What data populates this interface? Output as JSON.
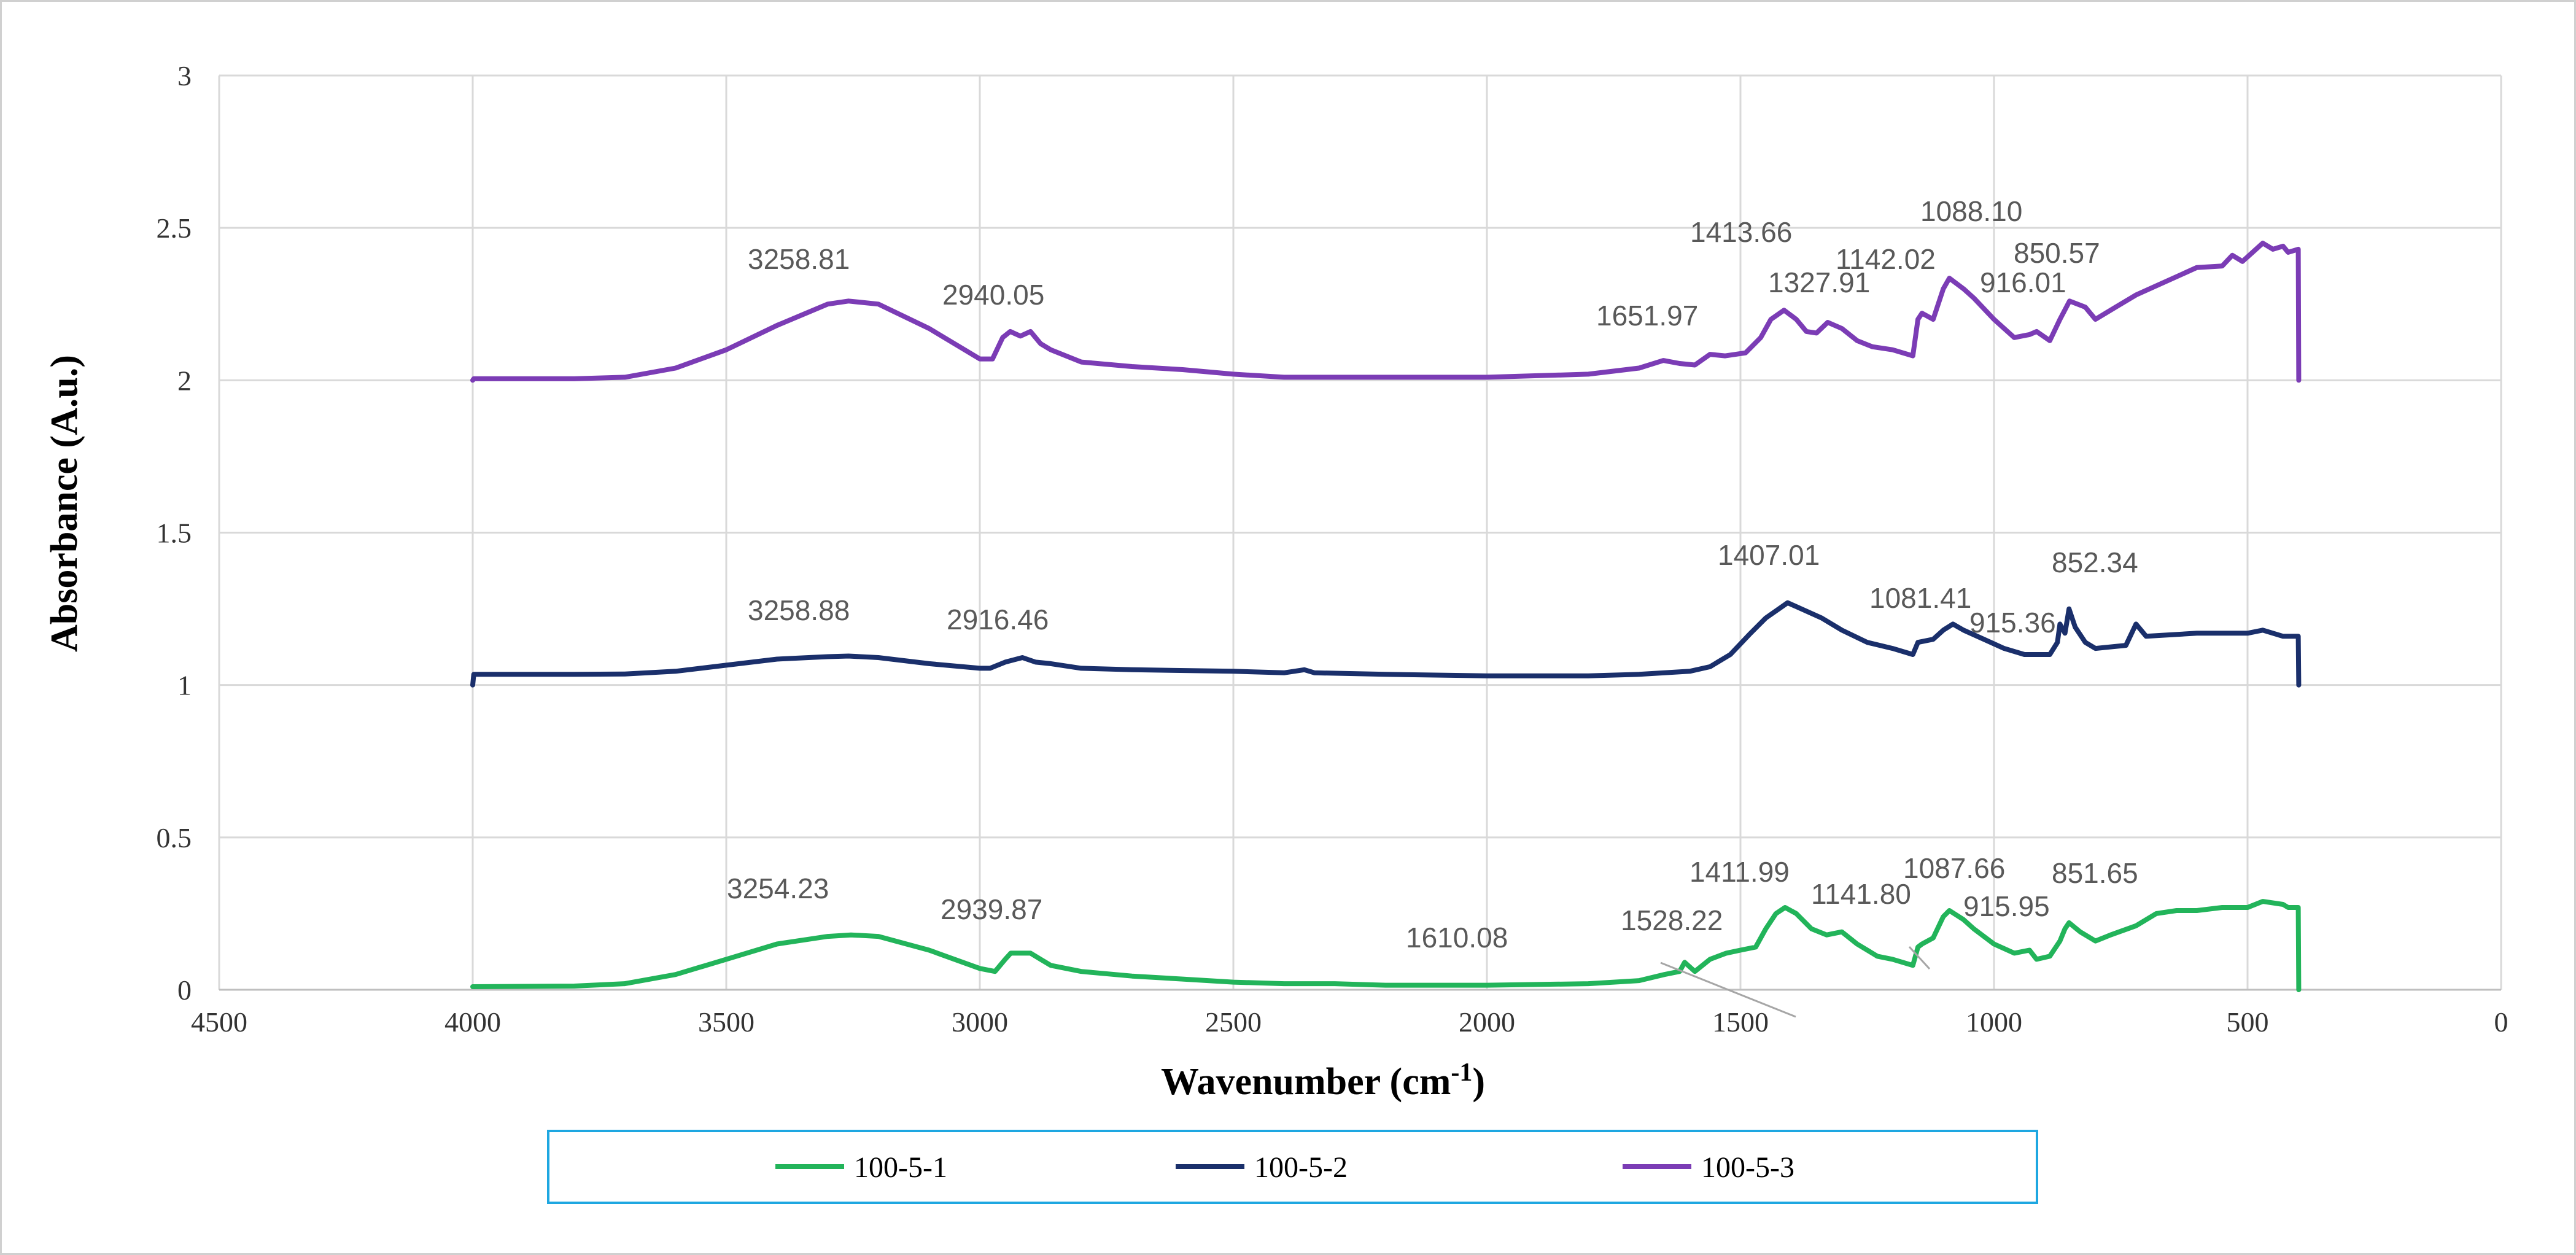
{
  "chart_data": {
    "type": "line",
    "title": "",
    "xlabel": "Wavenumber (cm",
    "xlabel_superscript": "-1",
    "xlabel_close": ")",
    "ylabel": "Absorbance (A.u.)",
    "xlim": [
      4500,
      0
    ],
    "ylim": [
      0,
      3
    ],
    "x_reversed": true,
    "grid": true,
    "legend_position": "bottom",
    "x_ticks": [
      4500,
      4000,
      3500,
      3000,
      2500,
      2000,
      1500,
      1000,
      500,
      0
    ],
    "y_ticks": [
      0,
      0.5,
      1,
      1.5,
      2,
      2.5,
      3
    ],
    "y_tick_labels": [
      "0",
      "0.5",
      "1",
      "1.5",
      "2",
      "2.5",
      "3"
    ],
    "series": [
      {
        "name": "100-5-1",
        "color": "#22b45a",
        "points": [
          [
            4000,
            0.01
          ],
          [
            3800,
            0.012
          ],
          [
            3700,
            0.02
          ],
          [
            3600,
            0.05
          ],
          [
            3500,
            0.1
          ],
          [
            3400,
            0.15
          ],
          [
            3300,
            0.175
          ],
          [
            3254,
            0.18
          ],
          [
            3200,
            0.175
          ],
          [
            3100,
            0.13
          ],
          [
            3000,
            0.07
          ],
          [
            2970,
            0.06
          ],
          [
            2950,
            0.1
          ],
          [
            2939,
            0.12
          ],
          [
            2920,
            0.12
          ],
          [
            2900,
            0.12
          ],
          [
            2880,
            0.1
          ],
          [
            2860,
            0.08
          ],
          [
            2800,
            0.06
          ],
          [
            2700,
            0.045
          ],
          [
            2600,
            0.035
          ],
          [
            2500,
            0.025
          ],
          [
            2400,
            0.02
          ],
          [
            2300,
            0.02
          ],
          [
            2200,
            0.015
          ],
          [
            2000,
            0.015
          ],
          [
            1800,
            0.02
          ],
          [
            1700,
            0.03
          ],
          [
            1650,
            0.05
          ],
          [
            1620,
            0.06
          ],
          [
            1610,
            0.09
          ],
          [
            1590,
            0.06
          ],
          [
            1560,
            0.1
          ],
          [
            1528,
            0.12
          ],
          [
            1500,
            0.13
          ],
          [
            1470,
            0.14
          ],
          [
            1450,
            0.2
          ],
          [
            1430,
            0.25
          ],
          [
            1412,
            0.27
          ],
          [
            1390,
            0.25
          ],
          [
            1360,
            0.2
          ],
          [
            1330,
            0.18
          ],
          [
            1300,
            0.19
          ],
          [
            1270,
            0.15
          ],
          [
            1230,
            0.11
          ],
          [
            1200,
            0.1
          ],
          [
            1160,
            0.08
          ],
          [
            1150,
            0.14
          ],
          [
            1142,
            0.15
          ],
          [
            1120,
            0.17
          ],
          [
            1100,
            0.24
          ],
          [
            1088,
            0.26
          ],
          [
            1060,
            0.23
          ],
          [
            1040,
            0.2
          ],
          [
            1000,
            0.15
          ],
          [
            960,
            0.12
          ],
          [
            930,
            0.13
          ],
          [
            916,
            0.1
          ],
          [
            890,
            0.11
          ],
          [
            870,
            0.16
          ],
          [
            860,
            0.2
          ],
          [
            852,
            0.22
          ],
          [
            830,
            0.19
          ],
          [
            800,
            0.16
          ],
          [
            770,
            0.18
          ],
          [
            720,
            0.21
          ],
          [
            680,
            0.25
          ],
          [
            640,
            0.26
          ],
          [
            600,
            0.26
          ],
          [
            550,
            0.27
          ],
          [
            500,
            0.27
          ],
          [
            470,
            0.29
          ],
          [
            430,
            0.28
          ],
          [
            420,
            0.27
          ],
          [
            400,
            0.27
          ],
          [
            399,
            0.0
          ]
        ]
      },
      {
        "name": "100-5-2",
        "color": "#1a2f6b",
        "points": [
          [
            4000,
            1.0
          ],
          [
            3998,
            1.035
          ],
          [
            3800,
            1.035
          ],
          [
            3700,
            1.036
          ],
          [
            3600,
            1.045
          ],
          [
            3500,
            1.065
          ],
          [
            3400,
            1.085
          ],
          [
            3300,
            1.093
          ],
          [
            3259,
            1.095
          ],
          [
            3200,
            1.09
          ],
          [
            3100,
            1.07
          ],
          [
            3000,
            1.055
          ],
          [
            2980,
            1.055
          ],
          [
            2950,
            1.075
          ],
          [
            2916,
            1.09
          ],
          [
            2890,
            1.075
          ],
          [
            2860,
            1.07
          ],
          [
            2800,
            1.055
          ],
          [
            2700,
            1.05
          ],
          [
            2500,
            1.045
          ],
          [
            2400,
            1.04
          ],
          [
            2360,
            1.05
          ],
          [
            2340,
            1.04
          ],
          [
            2200,
            1.035
          ],
          [
            2000,
            1.03
          ],
          [
            1800,
            1.03
          ],
          [
            1700,
            1.035
          ],
          [
            1600,
            1.045
          ],
          [
            1560,
            1.06
          ],
          [
            1520,
            1.1
          ],
          [
            1480,
            1.17
          ],
          [
            1450,
            1.22
          ],
          [
            1407,
            1.27
          ],
          [
            1380,
            1.25
          ],
          [
            1340,
            1.22
          ],
          [
            1300,
            1.18
          ],
          [
            1250,
            1.14
          ],
          [
            1200,
            1.12
          ],
          [
            1160,
            1.1
          ],
          [
            1150,
            1.14
          ],
          [
            1120,
            1.15
          ],
          [
            1100,
            1.18
          ],
          [
            1081,
            1.2
          ],
          [
            1060,
            1.18
          ],
          [
            1020,
            1.15
          ],
          [
            980,
            1.12
          ],
          [
            940,
            1.1
          ],
          [
            915,
            1.1
          ],
          [
            890,
            1.1
          ],
          [
            875,
            1.14
          ],
          [
            870,
            1.2
          ],
          [
            860,
            1.17
          ],
          [
            852,
            1.25
          ],
          [
            840,
            1.19
          ],
          [
            820,
            1.14
          ],
          [
            800,
            1.12
          ],
          [
            740,
            1.13
          ],
          [
            720,
            1.2
          ],
          [
            700,
            1.16
          ],
          [
            600,
            1.17
          ],
          [
            500,
            1.17
          ],
          [
            470,
            1.18
          ],
          [
            430,
            1.16
          ],
          [
            400,
            1.16
          ],
          [
            399,
            1.0
          ]
        ]
      },
      {
        "name": "100-5-3",
        "color": "#7b3cb5",
        "points": [
          [
            4000,
            2.0
          ],
          [
            3998,
            2.005
          ],
          [
            3800,
            2.005
          ],
          [
            3700,
            2.01
          ],
          [
            3600,
            2.04
          ],
          [
            3500,
            2.1
          ],
          [
            3400,
            2.18
          ],
          [
            3300,
            2.25
          ],
          [
            3259,
            2.26
          ],
          [
            3200,
            2.25
          ],
          [
            3100,
            2.17
          ],
          [
            3000,
            2.07
          ],
          [
            2975,
            2.07
          ],
          [
            2955,
            2.14
          ],
          [
            2940,
            2.16
          ],
          [
            2920,
            2.145
          ],
          [
            2900,
            2.16
          ],
          [
            2880,
            2.12
          ],
          [
            2860,
            2.1
          ],
          [
            2800,
            2.06
          ],
          [
            2700,
            2.045
          ],
          [
            2600,
            2.035
          ],
          [
            2500,
            2.02
          ],
          [
            2400,
            2.01
          ],
          [
            2300,
            2.01
          ],
          [
            2200,
            2.01
          ],
          [
            2000,
            2.01
          ],
          [
            1800,
            2.02
          ],
          [
            1700,
            2.04
          ],
          [
            1652,
            2.065
          ],
          [
            1620,
            2.055
          ],
          [
            1590,
            2.05
          ],
          [
            1560,
            2.085
          ],
          [
            1530,
            2.08
          ],
          [
            1490,
            2.09
          ],
          [
            1460,
            2.14
          ],
          [
            1440,
            2.2
          ],
          [
            1414,
            2.23
          ],
          [
            1390,
            2.2
          ],
          [
            1370,
            2.16
          ],
          [
            1350,
            2.155
          ],
          [
            1328,
            2.19
          ],
          [
            1300,
            2.17
          ],
          [
            1270,
            2.13
          ],
          [
            1240,
            2.11
          ],
          [
            1200,
            2.1
          ],
          [
            1160,
            2.08
          ],
          [
            1150,
            2.2
          ],
          [
            1142,
            2.22
          ],
          [
            1120,
            2.2
          ],
          [
            1100,
            2.3
          ],
          [
            1088,
            2.335
          ],
          [
            1060,
            2.3
          ],
          [
            1040,
            2.27
          ],
          [
            1000,
            2.2
          ],
          [
            960,
            2.14
          ],
          [
            930,
            2.15
          ],
          [
            916,
            2.16
          ],
          [
            890,
            2.13
          ],
          [
            870,
            2.2
          ],
          [
            851,
            2.26
          ],
          [
            820,
            2.24
          ],
          [
            800,
            2.2
          ],
          [
            760,
            2.24
          ],
          [
            720,
            2.28
          ],
          [
            680,
            2.31
          ],
          [
            640,
            2.34
          ],
          [
            600,
            2.37
          ],
          [
            550,
            2.375
          ],
          [
            530,
            2.41
          ],
          [
            510,
            2.39
          ],
          [
            490,
            2.42
          ],
          [
            470,
            2.45
          ],
          [
            450,
            2.43
          ],
          [
            430,
            2.44
          ],
          [
            420,
            2.42
          ],
          [
            400,
            2.43
          ],
          [
            399,
            2.0
          ]
        ]
      }
    ],
    "annotations": [
      {
        "text": "3258.81",
        "series": "100-5-3"
      },
      {
        "text": "2940.05",
        "series": "100-5-3"
      },
      {
        "text": "1651.97",
        "series": "100-5-3"
      },
      {
        "text": "1413.66",
        "series": "100-5-3"
      },
      {
        "text": "1327.91",
        "series": "100-5-3"
      },
      {
        "text": "1142.02",
        "series": "100-5-3"
      },
      {
        "text": "1088.10",
        "series": "100-5-3"
      },
      {
        "text": "916.01",
        "series": "100-5-3"
      },
      {
        "text": "850.57",
        "series": "100-5-3"
      },
      {
        "text": "3258.88",
        "series": "100-5-2"
      },
      {
        "text": "2916.46",
        "series": "100-5-2"
      },
      {
        "text": "1407.01",
        "series": "100-5-2"
      },
      {
        "text": "1081.41",
        "series": "100-5-2"
      },
      {
        "text": "915.36",
        "series": "100-5-2"
      },
      {
        "text": "852.34",
        "series": "100-5-2"
      },
      {
        "text": "3254.23",
        "series": "100-5-1"
      },
      {
        "text": "2939.87",
        "series": "100-5-1"
      },
      {
        "text": "1610.08",
        "series": "100-5-1"
      },
      {
        "text": "1528.22",
        "series": "100-5-1"
      },
      {
        "text": "1411.99",
        "series": "100-5-1"
      },
      {
        "text": "1141.80",
        "series": "100-5-1"
      },
      {
        "text": "1087.66",
        "series": "100-5-1"
      },
      {
        "text": "915.95",
        "series": "100-5-1"
      },
      {
        "text": "851.65",
        "series": "100-5-1"
      }
    ]
  }
}
